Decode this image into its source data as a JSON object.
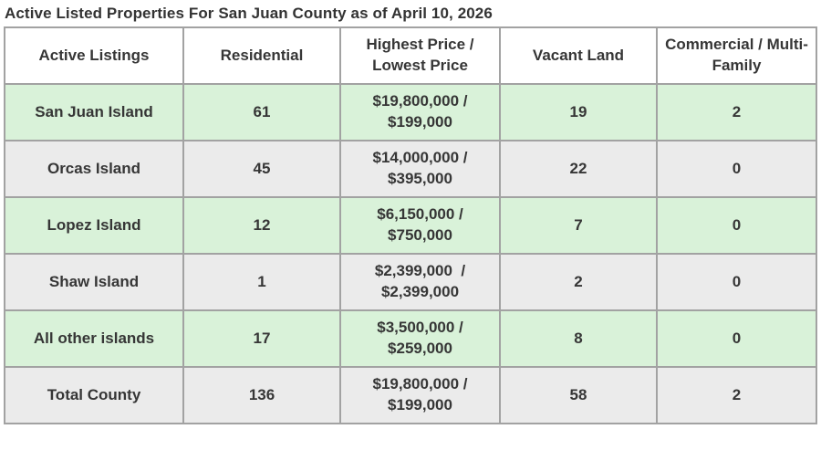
{
  "title": "Active Listed Properties For San Juan County as of April 10, 2026",
  "colors": {
    "row_highlight_green": "#d9f2d9",
    "row_gray": "#ebebeb",
    "grid_border": "#a2a2a2",
    "text": "#363636"
  },
  "table": {
    "headers": [
      "Active Listings",
      "Residential",
      "Highest Price / Lowest Price",
      "Vacant Land",
      "Commercial / Multi-Family"
    ],
    "rows": [
      {
        "name": "San Juan Island",
        "residential": "61",
        "price_high": "$19,800,000 /",
        "price_low": "$199,000",
        "vacant_land": "19",
        "commercial": "2"
      },
      {
        "name": "Orcas Island",
        "residential": "45",
        "price_high": "$14,000,000 /",
        "price_low": "$395,000",
        "vacant_land": "22",
        "commercial": "0"
      },
      {
        "name": "Lopez Island",
        "residential": "12",
        "price_high": "$6,150,000 /",
        "price_low": "$750,000",
        "vacant_land": "7",
        "commercial": "0"
      },
      {
        "name": "Shaw Island",
        "residential": "1",
        "price_high": "$2,399,000  /",
        "price_low": "$2,399,000",
        "vacant_land": "2",
        "commercial": "0"
      },
      {
        "name": "All other islands",
        "residential": "17",
        "price_high": "$3,500,000 /",
        "price_low": "$259,000",
        "vacant_land": "8",
        "commercial": "0"
      },
      {
        "name": "Total County",
        "residential": "136",
        "price_high": "$19,800,000 /",
        "price_low": "$199,000",
        "vacant_land": "58",
        "commercial": "2"
      }
    ]
  }
}
